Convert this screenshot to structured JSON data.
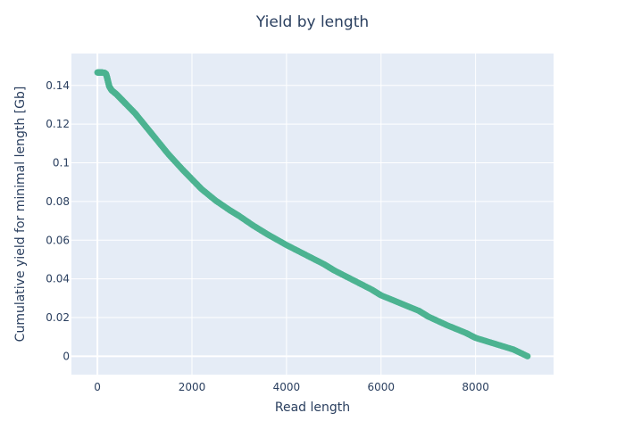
{
  "chart_data": {
    "type": "scatter",
    "title": "Yield by length",
    "xlabel": "Read length",
    "ylabel": "Cumulative yield for minimal length [Gb]",
    "xlim": [
      -550,
      9650
    ],
    "ylim": [
      -0.0095,
      0.1565
    ],
    "xticks": [
      0,
      2000,
      4000,
      6000,
      8000
    ],
    "xtick_labels": [
      "0",
      "2000",
      "4000",
      "6000",
      "8000"
    ],
    "yticks": [
      0,
      0.02,
      0.04,
      0.06,
      0.08,
      0.1,
      0.12,
      0.14
    ],
    "ytick_labels": [
      "0",
      "0.02",
      "0.04",
      "0.06",
      "0.08",
      "0.1",
      "0.12",
      "0.14"
    ],
    "grid": true,
    "plot_background": "#e5ecf6",
    "marker_color": "#4cb391",
    "series": [
      {
        "x": [
          0,
          50,
          100,
          150,
          180,
          200,
          220,
          250,
          300,
          400,
          500,
          600,
          800,
          1000,
          1200,
          1500,
          1800,
          2000,
          2200,
          2500,
          2800,
          3000,
          3300,
          3600,
          4000,
          4400,
          4800,
          5000,
          5400,
          5800,
          6000,
          6400,
          6800,
          7000,
          7400,
          7800,
          8000,
          8400,
          8800,
          9100
        ],
        "y": [
          0.1467,
          0.1467,
          0.1467,
          0.1465,
          0.146,
          0.1445,
          0.1425,
          0.1395,
          0.1375,
          0.1355,
          0.133,
          0.1305,
          0.1255,
          0.1195,
          0.1135,
          0.1045,
          0.0965,
          0.0915,
          0.0865,
          0.0805,
          0.0755,
          0.0725,
          0.0675,
          0.063,
          0.0575,
          0.0525,
          0.0475,
          0.0445,
          0.0395,
          0.0345,
          0.0315,
          0.0275,
          0.0235,
          0.0205,
          0.016,
          0.012,
          0.0095,
          0.0065,
          0.0035,
          0.0
        ]
      }
    ]
  }
}
